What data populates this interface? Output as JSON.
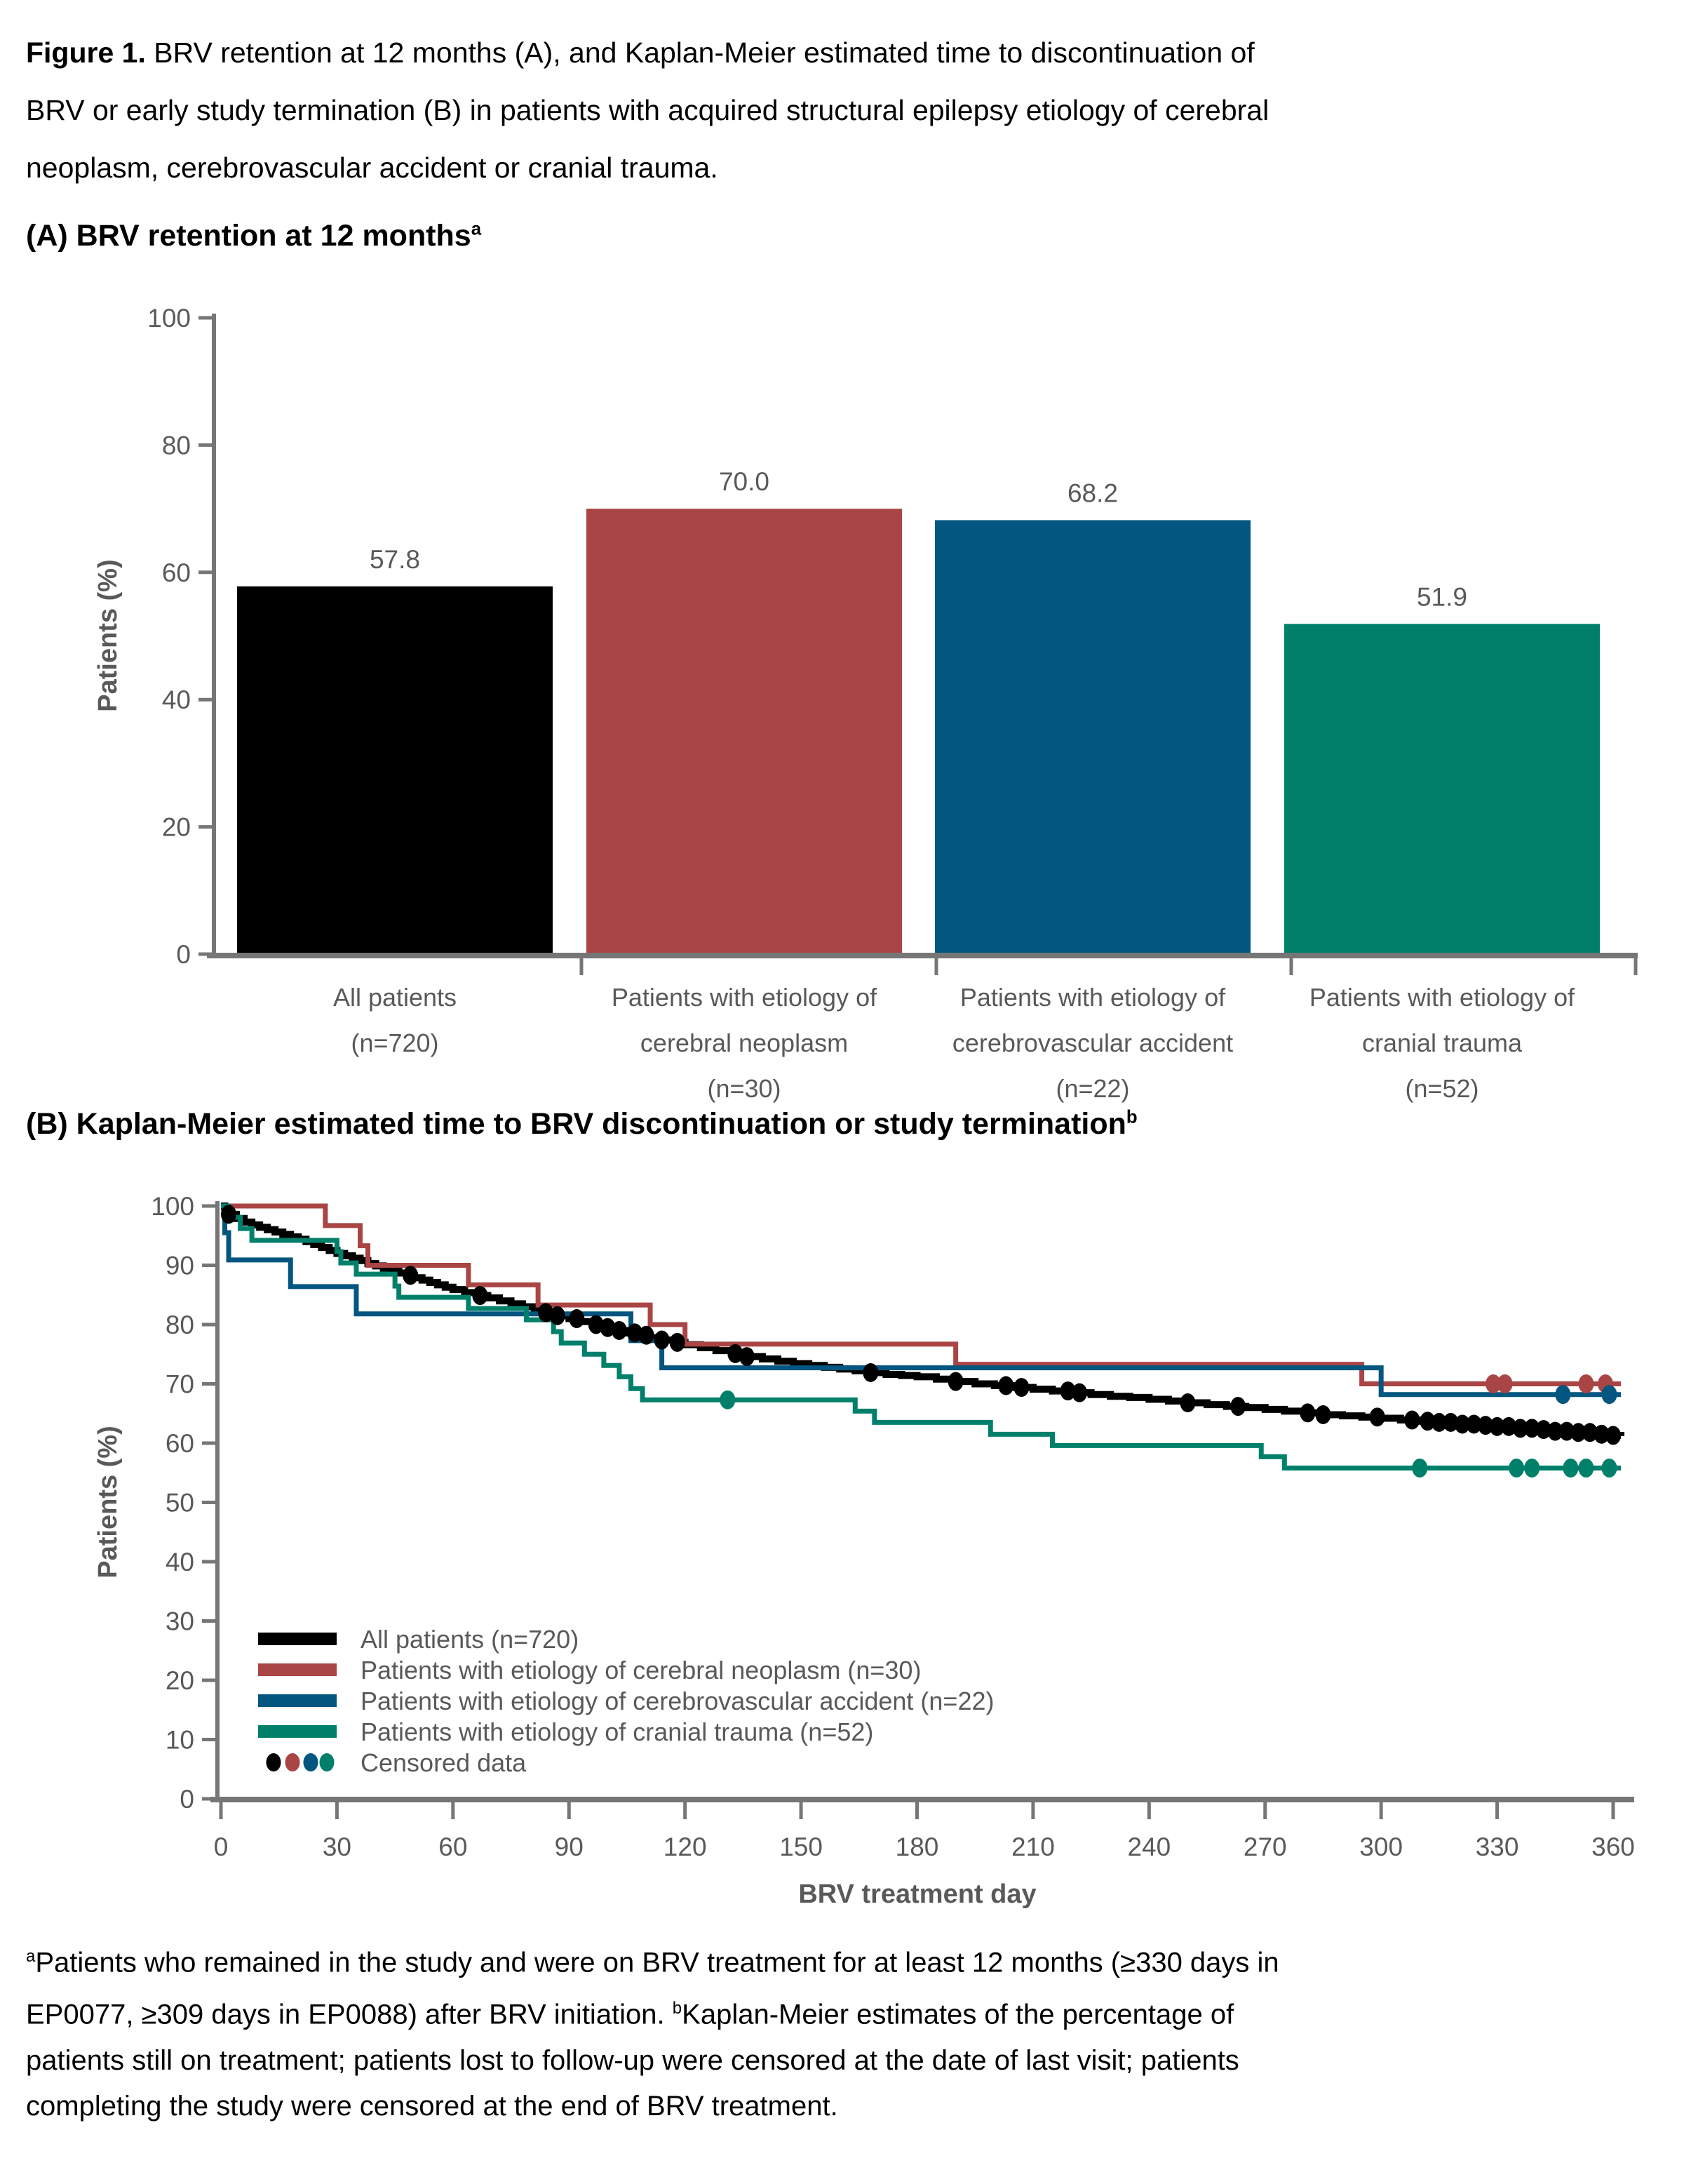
{
  "figure_title": {
    "lines": [
      [
        {
          "t": "Figure 1.",
          "b": true
        },
        {
          "t": " BRV retention at 12 months (A), and Kaplan-Meier estimated time to discontinuation of"
        }
      ],
      [
        {
          "t": "BRV or early study termination (B) in patients with acquired structural epilepsy etiology of cerebral"
        }
      ],
      [
        {
          "t": "neoplasm, cerebrovascular accident or cranial trauma."
        }
      ]
    ]
  },
  "panel_a_header": {
    "text": "(A) BRV retention at 12 months",
    "sup": "a"
  },
  "panel_b_header": {
    "text": "(B) Kaplan-Meier estimated time to BRV discontinuation or study termination",
    "sup": "b"
  },
  "footnote": {
    "lines": [
      [
        {
          "t": "a",
          "sup": true
        },
        {
          "t": "Patients who remained in the study and were on BRV treatment for at least 12 months (≥330 days in"
        }
      ],
      [
        {
          "t": "EP0077, ≥309 days in EP0088) after BRV initiation. "
        },
        {
          "t": "b",
          "sup": true
        },
        {
          "t": "Kaplan-Meier estimates of the percentage of"
        }
      ],
      [
        {
          "t": "patients still on treatment; patients lost to follow-up were censored at the date of last visit; patients"
        }
      ],
      [
        {
          "t": "completing the study were censored at the end of BRV treatment."
        }
      ]
    ]
  },
  "colors": {
    "black": "#000000",
    "red": "#AA4545",
    "blue": "#035680",
    "teal": "#00806A",
    "label_gray": "#595959",
    "axis_gray": "#767676"
  },
  "chart_data": [
    {
      "id": "brv-retention-bar",
      "type": "bar",
      "title": "(A) BRV retention at 12 months",
      "ylabel": "Patients (%)",
      "ylim": [
        0,
        100
      ],
      "yticks": [
        0,
        20,
        40,
        60,
        80,
        100
      ],
      "categories": [
        [
          "All patients",
          "(n=720)"
        ],
        [
          "Patients with etiology of",
          "cerebral neoplasm",
          "(n=30)"
        ],
        [
          "Patients with etiology of",
          "cerebrovascular accident",
          "(n=22)"
        ],
        [
          "Patients with etiology of",
          "cranial trauma",
          "(n=52)"
        ]
      ],
      "values": [
        57.8,
        70.0,
        68.2,
        51.9
      ],
      "value_labels": [
        "57.8",
        "70.0",
        "68.2",
        "51.9"
      ],
      "bar_colors": [
        "#000000",
        "#AA4545",
        "#035680",
        "#00806A"
      ]
    },
    {
      "id": "km-discontinuation",
      "type": "line",
      "step": true,
      "title": "(B) Kaplan-Meier estimated time to BRV discontinuation or study termination",
      "xlabel": "BRV treatment day",
      "ylabel": "Patients (%)",
      "xlim": [
        0,
        360
      ],
      "ylim": [
        0,
        100
      ],
      "xticks": [
        0,
        30,
        60,
        90,
        120,
        150,
        180,
        210,
        240,
        270,
        300,
        330,
        360
      ],
      "yticks": [
        0,
        10,
        20,
        30,
        40,
        50,
        60,
        70,
        80,
        90,
        100
      ],
      "legend_position": "inside bottom-left",
      "censored_label": "Censored data",
      "series": [
        {
          "name": "All patients (n=720)",
          "color": "#000000",
          "points": [
            [
              0,
              100
            ],
            [
              1,
              99.3
            ],
            [
              2,
              98.6
            ],
            [
              4,
              97.9
            ],
            [
              6,
              97.3
            ],
            [
              8,
              96.8
            ],
            [
              10,
              96.4
            ],
            [
              12,
              96.0
            ],
            [
              14,
              95.6
            ],
            [
              16,
              95.2
            ],
            [
              18,
              94.8
            ],
            [
              20,
              94.4
            ],
            [
              22,
              94.0
            ],
            [
              24,
              93.5
            ],
            [
              26,
              93.0
            ],
            [
              28,
              92.5
            ],
            [
              30,
              92.0
            ],
            [
              32,
              91.6
            ],
            [
              34,
              91.2
            ],
            [
              36,
              90.8
            ],
            [
              38,
              90.3
            ],
            [
              40,
              89.9
            ],
            [
              42,
              89.5
            ],
            [
              44,
              89.1
            ],
            [
              46,
              88.7
            ],
            [
              48,
              88.3
            ],
            [
              50,
              87.9
            ],
            [
              52,
              87.5
            ],
            [
              54,
              87.1
            ],
            [
              56,
              86.7
            ],
            [
              58,
              86.3
            ],
            [
              60,
              85.9
            ],
            [
              63,
              85.4
            ],
            [
              66,
              84.9
            ],
            [
              69,
              84.5
            ],
            [
              72,
              84.0
            ],
            [
              75,
              83.5
            ],
            [
              78,
              83.0
            ],
            [
              81,
              82.5
            ],
            [
              84,
              82.0
            ],
            [
              87,
              81.5
            ],
            [
              90,
              81.0
            ],
            [
              93,
              80.5
            ],
            [
              96,
              80.0
            ],
            [
              99,
              79.5
            ],
            [
              102,
              79.0
            ],
            [
              105,
              78.6
            ],
            [
              108,
              78.2
            ],
            [
              111,
              77.8
            ],
            [
              114,
              77.4
            ],
            [
              117,
              77.0
            ],
            [
              120,
              76.6
            ],
            [
              124,
              76.1
            ],
            [
              128,
              75.6
            ],
            [
              132,
              75.1
            ],
            [
              136,
              74.6
            ],
            [
              140,
              74.2
            ],
            [
              144,
              73.8
            ],
            [
              148,
              73.4
            ],
            [
              152,
              73.1
            ],
            [
              156,
              72.8
            ],
            [
              160,
              72.5
            ],
            [
              164,
              72.2
            ],
            [
              168,
              71.9
            ],
            [
              172,
              71.6
            ],
            [
              176,
              71.4
            ],
            [
              180,
              71.2
            ],
            [
              185,
              70.8
            ],
            [
              190,
              70.4
            ],
            [
              195,
              70.0
            ],
            [
              200,
              69.7
            ],
            [
              205,
              69.4
            ],
            [
              210,
              69.1
            ],
            [
              215,
              68.8
            ],
            [
              220,
              68.5
            ],
            [
              225,
              68.2
            ],
            [
              230,
              67.9
            ],
            [
              235,
              67.7
            ],
            [
              240,
              67.4
            ],
            [
              245,
              67.1
            ],
            [
              250,
              66.8
            ],
            [
              255,
              66.5
            ],
            [
              260,
              66.2
            ],
            [
              265,
              66.0
            ],
            [
              270,
              65.7
            ],
            [
              275,
              65.4
            ],
            [
              280,
              65.1
            ],
            [
              285,
              64.8
            ],
            [
              290,
              64.6
            ],
            [
              295,
              64.4
            ],
            [
              300,
              64.2
            ],
            [
              305,
              63.9
            ],
            [
              310,
              63.7
            ],
            [
              315,
              63.5
            ],
            [
              320,
              63.2
            ],
            [
              325,
              63.0
            ],
            [
              330,
              62.8
            ],
            [
              335,
              62.5
            ],
            [
              340,
              62.3
            ],
            [
              345,
              62.0
            ],
            [
              350,
              61.8
            ],
            [
              355,
              61.5
            ],
            [
              360,
              61.3
            ],
            [
              362,
              61.2
            ]
          ],
          "censored_days": [
            2,
            49,
            67,
            84,
            87,
            92,
            97,
            100,
            103,
            107,
            110,
            114,
            118,
            133,
            136,
            168,
            190,
            203,
            207,
            219,
            222,
            250,
            263,
            281,
            285,
            299,
            308,
            312,
            315,
            318,
            321,
            324,
            327,
            330,
            333,
            336,
            339,
            342,
            345,
            348,
            351,
            354,
            357,
            360
          ]
        },
        {
          "name": "Patients with etiology of cerebral neoplasm (n=30)",
          "color": "#AA4545",
          "points": [
            [
              0,
              100
            ],
            [
              27,
              96.7
            ],
            [
              36,
              93.3
            ],
            [
              38,
              90.0
            ],
            [
              64,
              86.7
            ],
            [
              82,
              83.3
            ],
            [
              111,
              80.0
            ],
            [
              120,
              76.7
            ],
            [
              190,
              73.3
            ],
            [
              295,
              70.0
            ],
            [
              362,
              70.0
            ]
          ],
          "censored_days": [
            329,
            332,
            353,
            358
          ]
        },
        {
          "name": "Patients with etiology of cerebrovascular accident (n=22)",
          "color": "#035680",
          "points": [
            [
              0,
              100
            ],
            [
              1,
              95.5
            ],
            [
              2,
              90.9
            ],
            [
              18,
              86.4
            ],
            [
              35,
              81.8
            ],
            [
              106,
              77.3
            ],
            [
              114,
              72.7
            ],
            [
              300,
              68.2
            ],
            [
              362,
              68.2
            ]
          ],
          "censored_days": [
            347,
            359
          ]
        },
        {
          "name": "Patients with etiology of cranial trauma (n=52)",
          "color": "#00806A",
          "points": [
            [
              0,
              100
            ],
            [
              2,
              98.1
            ],
            [
              5,
              96.2
            ],
            [
              8,
              94.2
            ],
            [
              30,
              92.3
            ],
            [
              31,
              90.4
            ],
            [
              35,
              88.5
            ],
            [
              45,
              86.5
            ],
            [
              46,
              84.6
            ],
            [
              64,
              82.7
            ],
            [
              79,
              80.8
            ],
            [
              86,
              78.8
            ],
            [
              88,
              76.9
            ],
            [
              94,
              75.0
            ],
            [
              99,
              73.1
            ],
            [
              103,
              71.2
            ],
            [
              106,
              69.2
            ],
            [
              109,
              67.3
            ],
            [
              164,
              65.4
            ],
            [
              169,
              63.5
            ],
            [
              199,
              61.5
            ],
            [
              215,
              59.6
            ],
            [
              269,
              57.7
            ],
            [
              275,
              55.8
            ],
            [
              362,
              55.8
            ]
          ],
          "censored_days": [
            131,
            310,
            335,
            339,
            349,
            353,
            359
          ]
        }
      ]
    }
  ]
}
